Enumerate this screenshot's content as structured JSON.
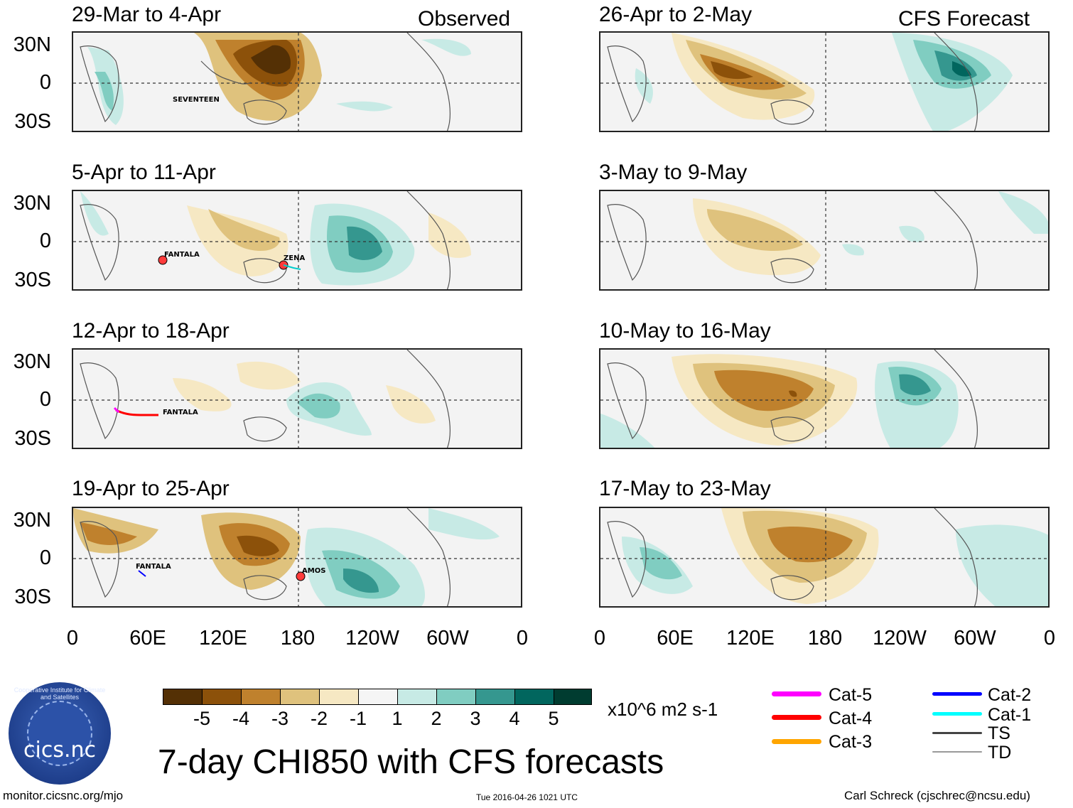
{
  "header": {
    "left": "Observed",
    "right": "CFS Forecast"
  },
  "observed_panels": [
    {
      "title": "29-Mar to 4-Apr",
      "storms": [
        {
          "name": "SEVENTEEN"
        }
      ]
    },
    {
      "title": "5-Apr to 11-Apr",
      "storms": [
        {
          "name": "FANTALA"
        },
        {
          "name": "ZENA"
        }
      ]
    },
    {
      "title": "12-Apr to 18-Apr",
      "storms": [
        {
          "name": "FANTALA"
        }
      ]
    },
    {
      "title": "19-Apr to 25-Apr",
      "storms": [
        {
          "name": "FANTALA"
        },
        {
          "name": "AMOS"
        }
      ]
    }
  ],
  "forecast_panels": [
    {
      "title": "26-Apr to 2-May"
    },
    {
      "title": "3-May to 9-May"
    },
    {
      "title": "10-May to 16-May"
    },
    {
      "title": "17-May to 23-May"
    }
  ],
  "lat_labels": [
    "30N",
    "0",
    "30S"
  ],
  "lon_labels": [
    "0",
    "60E",
    "120E",
    "180",
    "120W",
    "60W",
    "0"
  ],
  "colorbar": {
    "colors": [
      "#543005",
      "#8c510a",
      "#bf812d",
      "#dfc27d",
      "#f6e8c3",
      "#f5f5f5",
      "#c7eae5",
      "#80cdc1",
      "#35978f",
      "#01665e",
      "#003c30"
    ],
    "ticks": [
      "-5",
      "-4",
      "-3",
      "-2",
      "-1",
      "1",
      "2",
      "3",
      "4",
      "5"
    ],
    "units": "x10^6 m2 s-1"
  },
  "legend": [
    {
      "label": "Cat-5",
      "color": "#ff00ff"
    },
    {
      "label": "Cat-4",
      "color": "#ff0000"
    },
    {
      "label": "Cat-3",
      "color": "#ffa500"
    },
    {
      "label": "Cat-2",
      "color": "#0000ff"
    },
    {
      "label": "Cat-1",
      "color": "#00ffff"
    },
    {
      "label": "TS",
      "color": "#444444"
    },
    {
      "label": "TD",
      "color": "#999999"
    }
  ],
  "title": "7-day CHI850 with CFS forecasts",
  "footer": {
    "left": "monitor.cicsnc.org/mjo",
    "center": "Tue 2016-04-26 1021 UTC",
    "right": "Carl Schreck (cjschrec@ncsu.edu)"
  },
  "logo": {
    "text": "cics.nc",
    "ring": "Cooperative Institute for Climate and Satellites"
  }
}
